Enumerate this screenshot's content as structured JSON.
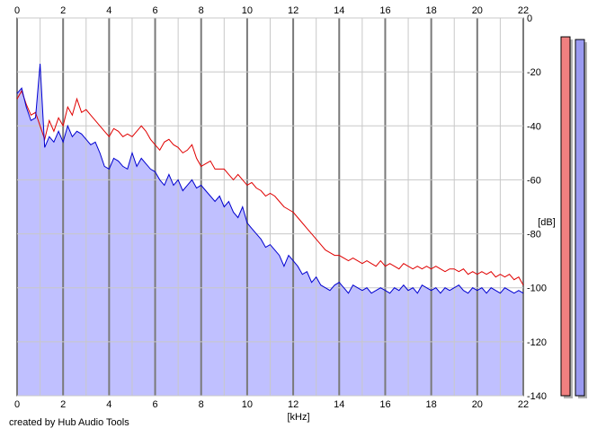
{
  "app": {
    "credit": "created by Hub Audio Tools"
  },
  "colors": {
    "channel_left": "#e00000",
    "channel_right": "#0000d0",
    "fill": "#c0c0ff",
    "grid_minor": "#c8c8c8",
    "grid_major": "#7a7a7a",
    "meter_left": "#f08080",
    "meter_right": "#9a9af0"
  },
  "chart_data": {
    "type": "line",
    "title": "",
    "xlabel": "[kHz]",
    "ylabel": "[dB]",
    "xlim": [
      0,
      22
    ],
    "ylim": [
      -140,
      0
    ],
    "xticks": [
      0,
      2,
      4,
      6,
      8,
      10,
      12,
      14,
      16,
      18,
      20,
      22
    ],
    "yticks": [
      0,
      -20,
      -40,
      -60,
      -80,
      -100,
      -120,
      -140
    ],
    "grid": true,
    "legend": "none",
    "series": [
      {
        "channel": "left",
        "color": "#e00000",
        "x": [
          0,
          0.2,
          0.4,
          0.6,
          0.8,
          1.0,
          1.2,
          1.4,
          1.6,
          1.8,
          2.0,
          2.2,
          2.4,
          2.6,
          2.8,
          3.0,
          3.2,
          3.4,
          3.6,
          3.8,
          4.0,
          4.2,
          4.4,
          4.6,
          4.8,
          5.0,
          5.2,
          5.4,
          5.6,
          5.8,
          6.0,
          6.2,
          6.4,
          6.6,
          6.8,
          7.0,
          7.2,
          7.4,
          7.6,
          7.8,
          8.0,
          8.2,
          8.4,
          8.6,
          8.8,
          9.0,
          9.2,
          9.4,
          9.6,
          9.8,
          10.0,
          10.2,
          10.4,
          10.6,
          10.8,
          11.0,
          11.2,
          11.4,
          11.6,
          11.8,
          12.0,
          12.2,
          12.4,
          12.6,
          12.8,
          13.0,
          13.2,
          13.4,
          13.6,
          13.8,
          14.0,
          14.2,
          14.4,
          14.6,
          14.8,
          15.0,
          15.2,
          15.4,
          15.6,
          15.8,
          16.0,
          16.2,
          16.4,
          16.6,
          16.8,
          17.0,
          17.2,
          17.4,
          17.6,
          17.8,
          18.0,
          18.2,
          18.4,
          18.6,
          18.8,
          19.0,
          19.2,
          19.4,
          19.6,
          19.8,
          20.0,
          20.2,
          20.4,
          20.6,
          20.8,
          21.0,
          21.2,
          21.4,
          21.6,
          21.8,
          22.0
        ],
        "y": [
          -30,
          -27,
          -32,
          -36,
          -35,
          -40,
          -45,
          -38,
          -42,
          -37,
          -40,
          -33,
          -36,
          -30,
          -35,
          -34,
          -36,
          -38,
          -40,
          -42,
          -44,
          -41,
          -42,
          -44,
          -43,
          -44,
          -42,
          -40,
          -42,
          -45,
          -47,
          -49,
          -46,
          -45,
          -47,
          -48,
          -50,
          -49,
          -47,
          -52,
          -55,
          -54,
          -53,
          -56,
          -56,
          -56,
          -58,
          -60,
          -58,
          -60,
          -62,
          -61,
          -63,
          -64,
          -66,
          -65,
          -66,
          -68,
          -70,
          -71,
          -72,
          -74,
          -76,
          -78,
          -80,
          -82,
          -84,
          -86,
          -87,
          -88,
          -88,
          -89,
          -90,
          -89,
          -90,
          -91,
          -90,
          -91,
          -92,
          -90,
          -92,
          -91,
          -92,
          -93,
          -91,
          -92,
          -93,
          -92,
          -93,
          -92,
          -93,
          -92,
          -93,
          -94,
          -93,
          -93,
          -94,
          -93,
          -95,
          -94,
          -95,
          -94,
          -95,
          -94,
          -96,
          -95,
          -96,
          -95,
          -97,
          -96,
          -99
        ]
      },
      {
        "channel": "right",
        "color": "#0000d0",
        "x": [
          0,
          0.2,
          0.4,
          0.6,
          0.8,
          1.0,
          1.2,
          1.4,
          1.6,
          1.8,
          2.0,
          2.2,
          2.4,
          2.6,
          2.8,
          3.0,
          3.2,
          3.4,
          3.6,
          3.8,
          4.0,
          4.2,
          4.4,
          4.6,
          4.8,
          5.0,
          5.2,
          5.4,
          5.6,
          5.8,
          6.0,
          6.2,
          6.4,
          6.6,
          6.8,
          7.0,
          7.2,
          7.4,
          7.6,
          7.8,
          8.0,
          8.2,
          8.4,
          8.6,
          8.8,
          9.0,
          9.2,
          9.4,
          9.6,
          9.8,
          10.0,
          10.2,
          10.4,
          10.6,
          10.8,
          11.0,
          11.2,
          11.4,
          11.6,
          11.8,
          12.0,
          12.2,
          12.4,
          12.6,
          12.8,
          13.0,
          13.2,
          13.4,
          13.6,
          13.8,
          14.0,
          14.2,
          14.4,
          14.6,
          14.8,
          15.0,
          15.2,
          15.4,
          15.6,
          15.8,
          16.0,
          16.2,
          16.4,
          16.6,
          16.8,
          17.0,
          17.2,
          17.4,
          17.6,
          17.8,
          18.0,
          18.2,
          18.4,
          18.6,
          18.8,
          19.0,
          19.2,
          19.4,
          19.6,
          19.8,
          20.0,
          20.2,
          20.4,
          20.6,
          20.8,
          21.0,
          21.2,
          21.4,
          21.6,
          21.8,
          22.0
        ],
        "y": [
          -28,
          -26,
          -33,
          -38,
          -37,
          -17,
          -48,
          -44,
          -46,
          -42,
          -46,
          -40,
          -44,
          -42,
          -43,
          -45,
          -47,
          -46,
          -50,
          -55,
          -56,
          -52,
          -53,
          -55,
          -56,
          -50,
          -55,
          -52,
          -54,
          -56,
          -57,
          -60,
          -62,
          -58,
          -62,
          -60,
          -64,
          -62,
          -60,
          -63,
          -62,
          -64,
          -66,
          -68,
          -66,
          -70,
          -68,
          -72,
          -74,
          -70,
          -76,
          -78,
          -80,
          -82,
          -85,
          -84,
          -86,
          -88,
          -92,
          -88,
          -90,
          -92,
          -95,
          -94,
          -98,
          -96,
          -99,
          -100,
          -101,
          -99,
          -98,
          -100,
          -102,
          -99,
          -100,
          -101,
          -100,
          -102,
          -101,
          -100,
          -101,
          -102,
          -100,
          -101,
          -99,
          -101,
          -100,
          -102,
          -99,
          -100,
          -101,
          -100,
          -102,
          -100,
          -101,
          -100,
          -99,
          -101,
          -102,
          -100,
          -101,
          -100,
          -102,
          -100,
          -101,
          -102,
          -100,
          -101,
          -102,
          -101,
          -102
        ]
      }
    ]
  },
  "meters": [
    {
      "channel": "left",
      "level_db": -7,
      "color": "#f08080"
    },
    {
      "channel": "right",
      "level_db": -8,
      "color": "#9a9af0"
    }
  ]
}
